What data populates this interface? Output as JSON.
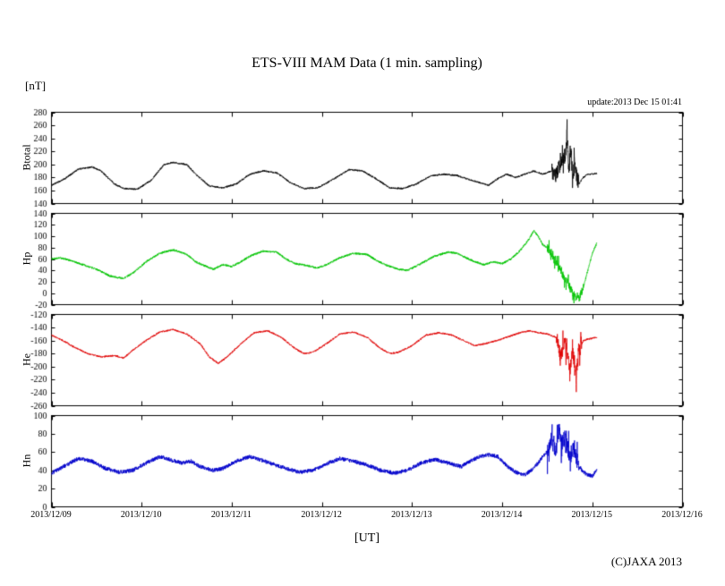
{
  "figure": {
    "title": "ETS-VIII MAM Data (1 min. sampling)",
    "unit_label": "[nT]",
    "update_label": "update:2013 Dec 15 01:41",
    "xaxis_label": "[UT]",
    "copyright": "(C)JAXA 2013"
  },
  "chart_data": {
    "type": "line",
    "title": "ETS-VIII MAM Data (1 min. sampling)",
    "xlabel": "[UT]",
    "ylabel_unit": "[nT]",
    "x_tick_labels": [
      "2013/12/09",
      "2013/12/10",
      "2013/12/11",
      "2013/12/12",
      "2013/12/13",
      "2013/12/14",
      "2013/12/15",
      "2013/12/16"
    ],
    "xlim_days": [
      0,
      7
    ],
    "grid": false,
    "legend": "none",
    "panels": [
      {
        "name": "Btotal",
        "color": "#000000",
        "ylim": [
          140,
          280
        ],
        "ytick_step": 20,
        "noise_amp": 1.3,
        "storm": {
          "start": 5.55,
          "end": 5.85,
          "amp": 12
        },
        "data_end_day": 6.05,
        "points": [
          [
            0,
            168
          ],
          [
            0.15,
            178
          ],
          [
            0.3,
            193
          ],
          [
            0.45,
            196
          ],
          [
            0.55,
            190
          ],
          [
            0.7,
            170
          ],
          [
            0.8,
            163
          ],
          [
            0.95,
            162
          ],
          [
            1.1,
            175
          ],
          [
            1.25,
            200
          ],
          [
            1.35,
            203
          ],
          [
            1.5,
            200
          ],
          [
            1.6,
            185
          ],
          [
            1.75,
            167
          ],
          [
            1.9,
            164
          ],
          [
            2.05,
            170
          ],
          [
            2.2,
            185
          ],
          [
            2.35,
            190
          ],
          [
            2.5,
            187
          ],
          [
            2.65,
            172
          ],
          [
            2.8,
            163
          ],
          [
            2.95,
            164
          ],
          [
            3.1,
            175
          ],
          [
            3.3,
            192
          ],
          [
            3.45,
            190
          ],
          [
            3.6,
            178
          ],
          [
            3.75,
            164
          ],
          [
            3.9,
            163
          ],
          [
            4.05,
            170
          ],
          [
            4.2,
            182
          ],
          [
            4.35,
            185
          ],
          [
            4.5,
            183
          ],
          [
            4.65,
            176
          ],
          [
            4.75,
            172
          ],
          [
            4.85,
            168
          ],
          [
            4.95,
            178
          ],
          [
            5.05,
            185
          ],
          [
            5.15,
            180
          ],
          [
            5.25,
            185
          ],
          [
            5.35,
            190
          ],
          [
            5.45,
            185
          ],
          [
            5.55,
            190
          ],
          [
            5.6,
            185
          ],
          [
            5.65,
            200
          ],
          [
            5.7,
            215
          ],
          [
            5.72,
            245
          ],
          [
            5.74,
            190
          ],
          [
            5.76,
            230
          ],
          [
            5.78,
            175
          ],
          [
            5.8,
            200
          ],
          [
            5.85,
            170
          ],
          [
            5.9,
            180
          ],
          [
            5.95,
            185
          ],
          [
            6.05,
            186
          ]
        ]
      },
      {
        "name": "Hp",
        "color": "#00c400",
        "ylim": [
          -20,
          140
        ],
        "ytick_step": 20,
        "noise_amp": 1.8,
        "storm": {
          "start": 5.5,
          "end": 5.9,
          "amp": 6
        },
        "data_end_day": 6.05,
        "points": [
          [
            0,
            60
          ],
          [
            0.1,
            62
          ],
          [
            0.2,
            58
          ],
          [
            0.35,
            50
          ],
          [
            0.5,
            42
          ],
          [
            0.65,
            30
          ],
          [
            0.8,
            26
          ],
          [
            0.9,
            35
          ],
          [
            1.05,
            55
          ],
          [
            1.2,
            70
          ],
          [
            1.35,
            76
          ],
          [
            1.5,
            68
          ],
          [
            1.6,
            55
          ],
          [
            1.7,
            48
          ],
          [
            1.8,
            42
          ],
          [
            1.9,
            50
          ],
          [
            2.0,
            47
          ],
          [
            2.1,
            55
          ],
          [
            2.2,
            65
          ],
          [
            2.35,
            74
          ],
          [
            2.5,
            72
          ],
          [
            2.6,
            60
          ],
          [
            2.7,
            52
          ],
          [
            2.85,
            48
          ],
          [
            2.95,
            44
          ],
          [
            3.05,
            50
          ],
          [
            3.2,
            62
          ],
          [
            3.35,
            70
          ],
          [
            3.5,
            68
          ],
          [
            3.6,
            58
          ],
          [
            3.7,
            50
          ],
          [
            3.85,
            42
          ],
          [
            3.95,
            40
          ],
          [
            4.1,
            52
          ],
          [
            4.25,
            65
          ],
          [
            4.4,
            72
          ],
          [
            4.5,
            70
          ],
          [
            4.6,
            62
          ],
          [
            4.7,
            55
          ],
          [
            4.8,
            50
          ],
          [
            4.9,
            55
          ],
          [
            5.0,
            52
          ],
          [
            5.1,
            60
          ],
          [
            5.2,
            75
          ],
          [
            5.3,
            95
          ],
          [
            5.35,
            110
          ],
          [
            5.4,
            100
          ],
          [
            5.45,
            85
          ],
          [
            5.5,
            80
          ],
          [
            5.55,
            70
          ],
          [
            5.6,
            55
          ],
          [
            5.65,
            40
          ],
          [
            5.7,
            25
          ],
          [
            5.75,
            10
          ],
          [
            5.8,
            -5
          ],
          [
            5.85,
            -10
          ],
          [
            5.9,
            10
          ],
          [
            5.95,
            40
          ],
          [
            6.0,
            70
          ],
          [
            6.05,
            88
          ]
        ]
      },
      {
        "name": "He",
        "color": "#e00000",
        "ylim": [
          -260,
          -120
        ],
        "ytick_step": 20,
        "noise_amp": 1.3,
        "storm": {
          "start": 5.6,
          "end": 5.88,
          "amp": 12
        },
        "data_end_day": 6.05,
        "points": [
          [
            0,
            -152
          ],
          [
            0.1,
            -158
          ],
          [
            0.25,
            -170
          ],
          [
            0.4,
            -180
          ],
          [
            0.55,
            -185
          ],
          [
            0.7,
            -183
          ],
          [
            0.8,
            -187
          ],
          [
            0.9,
            -175
          ],
          [
            1.05,
            -160
          ],
          [
            1.2,
            -147
          ],
          [
            1.35,
            -143
          ],
          [
            1.5,
            -150
          ],
          [
            1.65,
            -165
          ],
          [
            1.75,
            -185
          ],
          [
            1.85,
            -195
          ],
          [
            1.95,
            -185
          ],
          [
            2.1,
            -165
          ],
          [
            2.25,
            -148
          ],
          [
            2.4,
            -145
          ],
          [
            2.55,
            -155
          ],
          [
            2.7,
            -172
          ],
          [
            2.8,
            -180
          ],
          [
            2.9,
            -178
          ],
          [
            3.05,
            -165
          ],
          [
            3.2,
            -150
          ],
          [
            3.35,
            -147
          ],
          [
            3.5,
            -155
          ],
          [
            3.65,
            -172
          ],
          [
            3.75,
            -180
          ],
          [
            3.85,
            -178
          ],
          [
            4.0,
            -168
          ],
          [
            4.15,
            -152
          ],
          [
            4.3,
            -148
          ],
          [
            4.45,
            -152
          ],
          [
            4.6,
            -162
          ],
          [
            4.7,
            -168
          ],
          [
            4.8,
            -165
          ],
          [
            4.95,
            -160
          ],
          [
            5.05,
            -155
          ],
          [
            5.2,
            -148
          ],
          [
            5.3,
            -145
          ],
          [
            5.4,
            -148
          ],
          [
            5.5,
            -150
          ],
          [
            5.6,
            -155
          ],
          [
            5.65,
            -185
          ],
          [
            5.7,
            -160
          ],
          [
            5.75,
            -210
          ],
          [
            5.78,
            -170
          ],
          [
            5.82,
            -215
          ],
          [
            5.85,
            -175
          ],
          [
            5.9,
            -160
          ],
          [
            5.95,
            -158
          ],
          [
            6.05,
            -155
          ]
        ]
      },
      {
        "name": "Hn",
        "color": "#0000cc",
        "ylim": [
          0,
          100
        ],
        "ytick_step": 20,
        "noise_amp": 2.2,
        "storm": {
          "start": 5.5,
          "end": 5.85,
          "amp": 8
        },
        "data_end_day": 6.05,
        "points": [
          [
            0,
            37
          ],
          [
            0.15,
            45
          ],
          [
            0.3,
            53
          ],
          [
            0.45,
            50
          ],
          [
            0.6,
            42
          ],
          [
            0.75,
            38
          ],
          [
            0.9,
            40
          ],
          [
            1.05,
            48
          ],
          [
            1.2,
            55
          ],
          [
            1.3,
            52
          ],
          [
            1.45,
            48
          ],
          [
            1.55,
            50
          ],
          [
            1.65,
            44
          ],
          [
            1.8,
            40
          ],
          [
            1.9,
            42
          ],
          [
            2.05,
            50
          ],
          [
            2.2,
            55
          ],
          [
            2.3,
            52
          ],
          [
            2.45,
            47
          ],
          [
            2.6,
            42
          ],
          [
            2.75,
            38
          ],
          [
            2.9,
            40
          ],
          [
            3.05,
            47
          ],
          [
            3.2,
            53
          ],
          [
            3.35,
            50
          ],
          [
            3.5,
            46
          ],
          [
            3.65,
            40
          ],
          [
            3.8,
            37
          ],
          [
            3.95,
            40
          ],
          [
            4.1,
            48
          ],
          [
            4.25,
            52
          ],
          [
            4.4,
            48
          ],
          [
            4.55,
            44
          ],
          [
            4.6,
            48
          ],
          [
            4.75,
            55
          ],
          [
            4.85,
            57
          ],
          [
            4.95,
            55
          ],
          [
            5.05,
            45
          ],
          [
            5.15,
            38
          ],
          [
            5.25,
            35
          ],
          [
            5.35,
            42
          ],
          [
            5.45,
            55
          ],
          [
            5.5,
            60
          ],
          [
            5.55,
            75
          ],
          [
            5.6,
            60
          ],
          [
            5.63,
            90
          ],
          [
            5.66,
            65
          ],
          [
            5.7,
            80
          ],
          [
            5.75,
            55
          ],
          [
            5.8,
            65
          ],
          [
            5.85,
            45
          ],
          [
            5.9,
            38
          ],
          [
            5.95,
            35
          ],
          [
            6.0,
            34
          ],
          [
            6.05,
            40
          ]
        ]
      }
    ]
  }
}
